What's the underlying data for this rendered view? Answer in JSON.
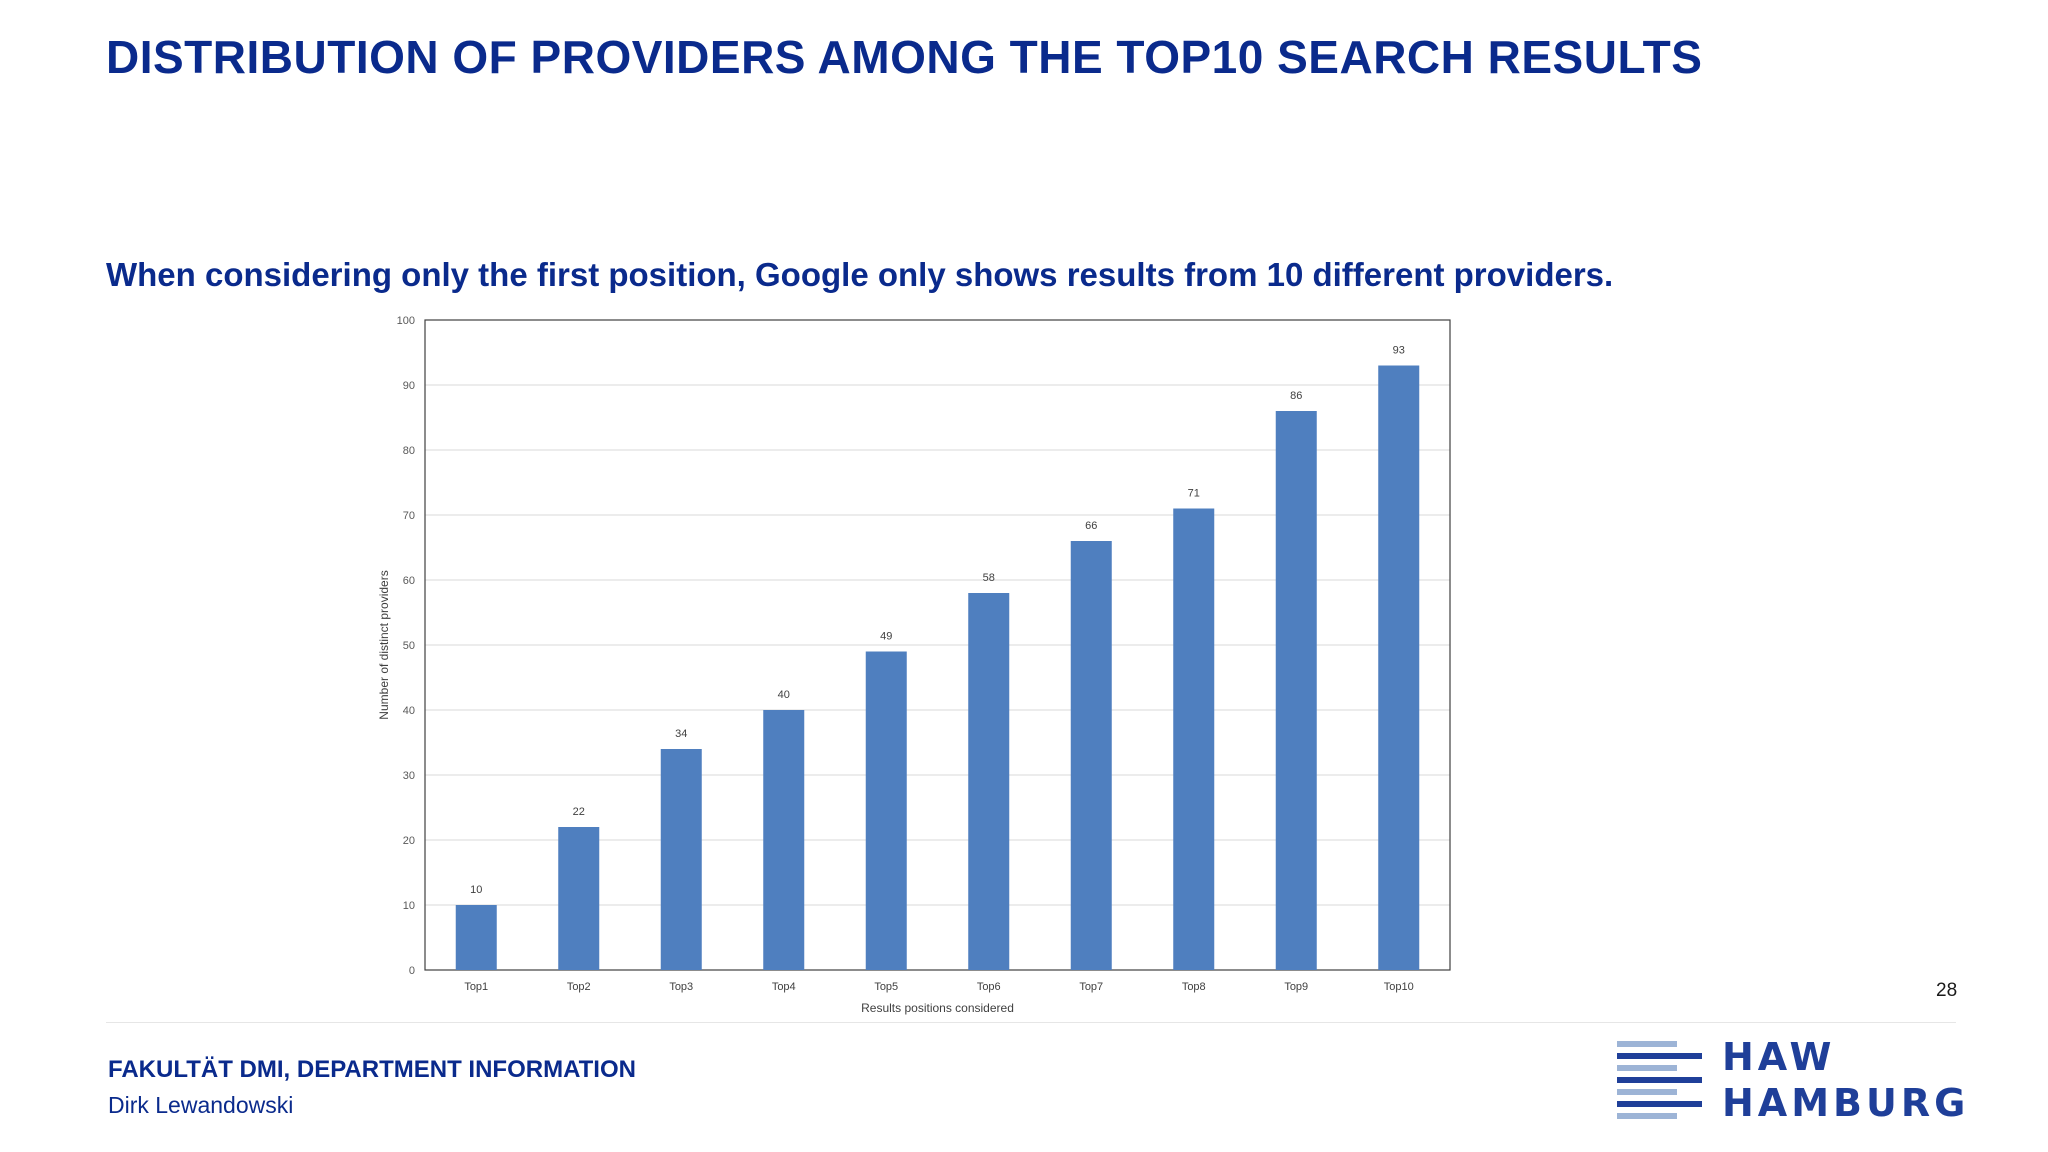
{
  "slide": {
    "title": "DISTRIBUTION OF PROVIDERS AMONG THE TOP10 SEARCH RESULTS",
    "subtitle": "When considering only the first position, Google only shows results from 10 different providers.",
    "page_number": "28"
  },
  "footer": {
    "department": "FAKULTÄT DMI, DEPARTMENT INFORMATION",
    "author": "Dirk Lewandowski",
    "logo_line1": "HAW",
    "logo_line2": "HAMBURG"
  },
  "colors": {
    "title": "#0a2a8c",
    "bar": "#4f7fbf",
    "logo_dark": "#1f3f99",
    "logo_light": "#9db4d6"
  },
  "chart_data": {
    "type": "bar",
    "categories": [
      "Top1",
      "Top2",
      "Top3",
      "Top4",
      "Top5",
      "Top6",
      "Top7",
      "Top8",
      "Top9",
      "Top10"
    ],
    "values": [
      10,
      22,
      34,
      40,
      49,
      58,
      66,
      71,
      86,
      93
    ],
    "xlabel": "Results positions considered",
    "ylabel": "Number of distinct providers",
    "ylim": [
      0,
      100
    ],
    "yticks": [
      0,
      10,
      20,
      30,
      40,
      50,
      60,
      70,
      80,
      90,
      100
    ],
    "grid": true,
    "legend": "none",
    "data_labels": true
  }
}
